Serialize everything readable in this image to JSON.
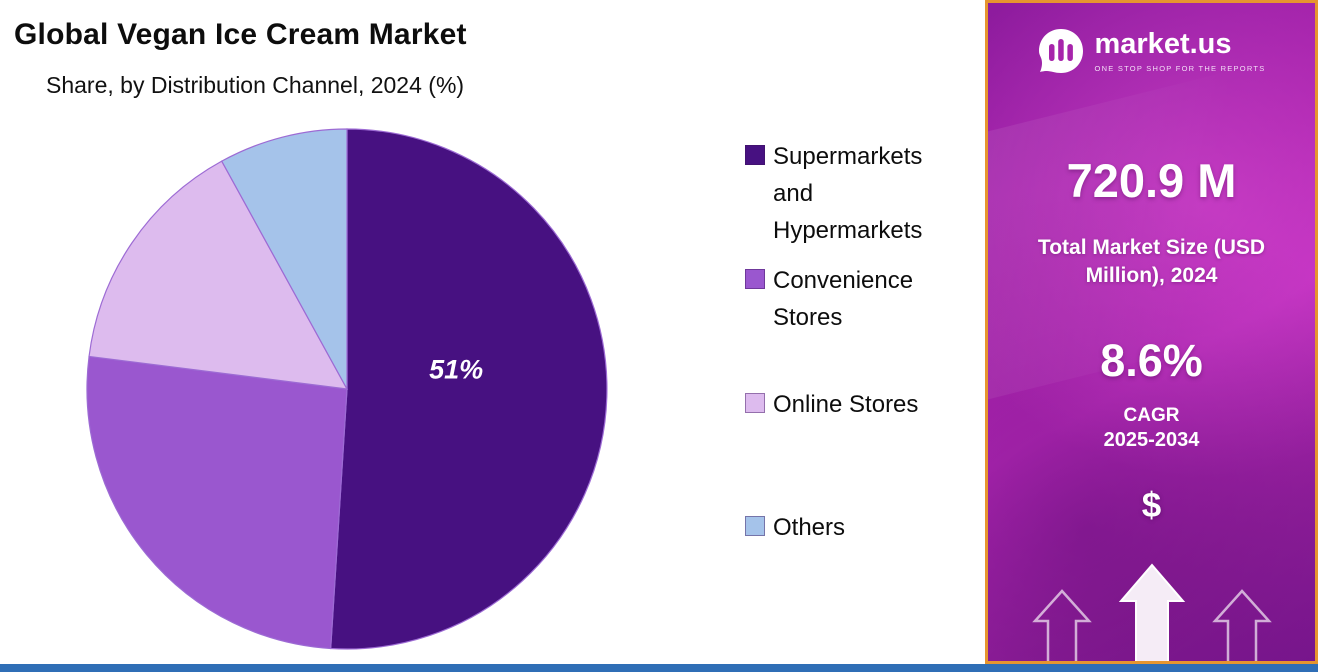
{
  "header": {
    "title": "Global Vegan Ice Cream Market",
    "subtitle": "Share, by Distribution Channel, 2024 (%)"
  },
  "chart_data": {
    "type": "pie",
    "title": "Global Vegan Ice Cream Market",
    "subtitle": "Share, by Distribution Channel, 2024 (%)",
    "categories": [
      "Supermarkets and Hypermarkets",
      "Convenience Stores",
      "Online Stores",
      "Others"
    ],
    "values": [
      51,
      26,
      15,
      8
    ],
    "colors": [
      "#471181",
      "#9a57cf",
      "#ddbbee",
      "#a5c3ea"
    ],
    "data_labels": [
      "51%",
      "",
      "",
      ""
    ],
    "start_angle_deg": -90,
    "direction": "clockwise",
    "legend_position": "right",
    "outline_color": "#9d6bd4"
  },
  "legend": {
    "items": [
      {
        "label": "Supermarkets and Hypermarkets",
        "color": "#471181"
      },
      {
        "label": "Convenience Stores",
        "color": "#9a57cf"
      },
      {
        "label": "Online Stores",
        "color": "#ddbbee"
      },
      {
        "label": "Others",
        "color": "#a5c3ea"
      }
    ]
  },
  "sidebar": {
    "brand": {
      "name": "market.us",
      "tagline": "ONE STOP SHOP FOR THE REPORTS"
    },
    "market_size_value": "720.9 M",
    "market_size_label": "Total Market Size (USD Million), 2024",
    "cagr_value": "8.6%",
    "cagr_label": "CAGR",
    "cagr_period": "2025-2034",
    "dollar_symbol": "$",
    "accent_border_color": "#e6952f",
    "bottom_bar_color": "#2f6eb6"
  }
}
